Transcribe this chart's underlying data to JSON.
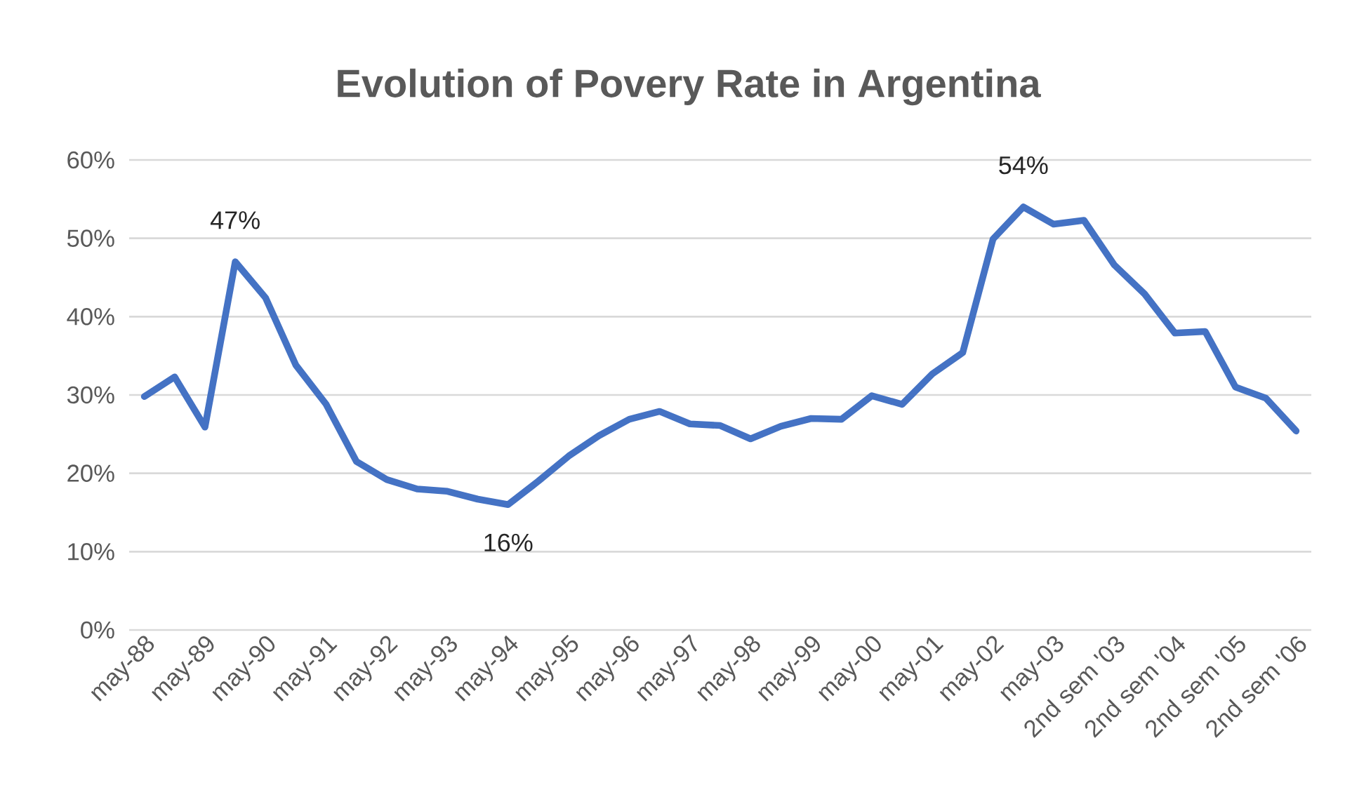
{
  "chart_data": {
    "type": "line",
    "title": "Evolution of Povery Rate in Argentina",
    "categories": [
      "may-88",
      null,
      "may-89",
      null,
      "may-90",
      null,
      "may-91",
      null,
      "may-92",
      null,
      "may-93",
      null,
      "may-94",
      null,
      "may-95",
      null,
      "may-96",
      null,
      "may-97",
      null,
      "may-98",
      null,
      "may-99",
      null,
      "may-00",
      null,
      "may-01",
      null,
      "may-02",
      null,
      "may-03",
      null,
      "2nd sem '03",
      null,
      "2nd sem '04",
      null,
      "2nd sem '05",
      null,
      "2nd sem '06"
    ],
    "series": [
      {
        "color": "#4472c4",
        "values": [
          29.8,
          32.3,
          25.9,
          47,
          42.4,
          33.8,
          28.8,
          21.5,
          19.2,
          18.0,
          17.7,
          16.7,
          16,
          19.0,
          22.2,
          24.8,
          26.9,
          27.9,
          26.3,
          26.1,
          24.4,
          26.0,
          27.0,
          26.9,
          29.9,
          28.8,
          32.7,
          35.4,
          49.9,
          54,
          51.8,
          52.3,
          46.6,
          42.9,
          37.9,
          38.1,
          31.0,
          29.6,
          25.4
        ],
        "value_labels": [
          null,
          null,
          null,
          "47%",
          null,
          null,
          null,
          null,
          null,
          null,
          null,
          null,
          "16%",
          null,
          null,
          null,
          null,
          null,
          null,
          null,
          null,
          null,
          null,
          null,
          null,
          null,
          null,
          null,
          null,
          "54%",
          null,
          null,
          null,
          null,
          null,
          null,
          null,
          null,
          null
        ]
      }
    ],
    "ylim": [
      0,
      60
    ],
    "yticks": [
      {
        "value": 0,
        "label": "0%"
      },
      {
        "value": 10,
        "label": "10%"
      },
      {
        "value": 20,
        "label": "20%"
      },
      {
        "value": 30,
        "label": "30%"
      },
      {
        "value": 40,
        "label": "40%"
      },
      {
        "value": 50,
        "label": "50%"
      },
      {
        "value": 60,
        "label": "60%"
      }
    ],
    "grid": "y",
    "line_style": "solid"
  }
}
